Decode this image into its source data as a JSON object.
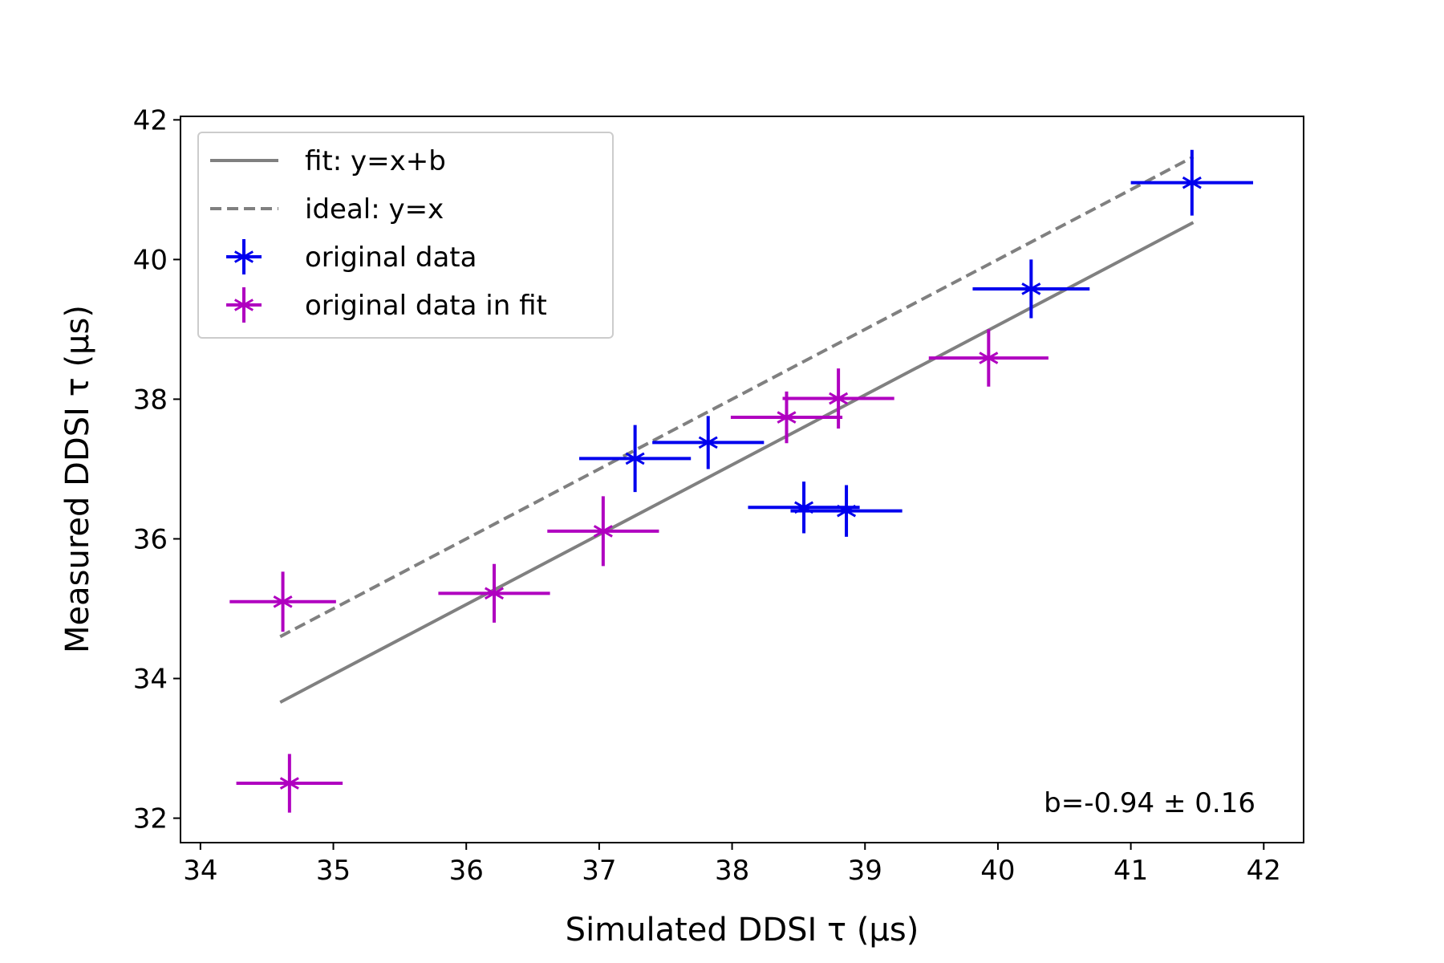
{
  "chart_data": {
    "type": "scatter",
    "xlabel": "Simulated DDSI τ (μs)",
    "ylabel": "Measured DDSI τ (μs)",
    "xlim": [
      33.85,
      42.3
    ],
    "ylim": [
      31.65,
      42.05
    ],
    "xticks": [
      34,
      35,
      36,
      37,
      38,
      39,
      40,
      41,
      42
    ],
    "yticks": [
      32,
      34,
      36,
      38,
      40,
      42
    ],
    "grid": false,
    "legend_position": "top-left",
    "annotation": "b=-0.94 ± 0.16",
    "colors": {
      "original": "#0000ee",
      "in_fit": "#b000c0",
      "lines": "#808080"
    },
    "lines": [
      {
        "name": "fit: y=x+b",
        "style": "solid",
        "x": [
          34.6,
          41.47
        ],
        "y": [
          33.66,
          40.53
        ]
      },
      {
        "name": "ideal: y=x",
        "style": "dashed",
        "x": [
          34.6,
          41.47
        ],
        "y": [
          34.6,
          41.47
        ]
      }
    ],
    "series": [
      {
        "name": "original data",
        "color_key": "original",
        "points": [
          {
            "x": 37.27,
            "y": 37.15,
            "xerr": 0.42,
            "yerr": 0.48
          },
          {
            "x": 37.82,
            "y": 37.38,
            "xerr": 0.42,
            "yerr": 0.38
          },
          {
            "x": 38.54,
            "y": 36.45,
            "xerr": 0.42,
            "yerr": 0.37
          },
          {
            "x": 38.86,
            "y": 36.4,
            "xerr": 0.42,
            "yerr": 0.37
          },
          {
            "x": 40.25,
            "y": 39.58,
            "xerr": 0.44,
            "yerr": 0.42
          },
          {
            "x": 41.46,
            "y": 41.1,
            "xerr": 0.46,
            "yerr": 0.47
          }
        ]
      },
      {
        "name": "original data in fit",
        "color_key": "in_fit",
        "points": [
          {
            "x": 34.62,
            "y": 35.1,
            "xerr": 0.4,
            "yerr": 0.43
          },
          {
            "x": 34.67,
            "y": 32.5,
            "xerr": 0.4,
            "yerr": 0.42
          },
          {
            "x": 36.21,
            "y": 35.22,
            "xerr": 0.42,
            "yerr": 0.42
          },
          {
            "x": 37.03,
            "y": 36.11,
            "xerr": 0.42,
            "yerr": 0.5
          },
          {
            "x": 38.41,
            "y": 37.74,
            "xerr": 0.42,
            "yerr": 0.37
          },
          {
            "x": 38.8,
            "y": 38.01,
            "xerr": 0.42,
            "yerr": 0.43
          },
          {
            "x": 39.93,
            "y": 38.59,
            "xerr": 0.45,
            "yerr": 0.41
          }
        ]
      }
    ]
  }
}
